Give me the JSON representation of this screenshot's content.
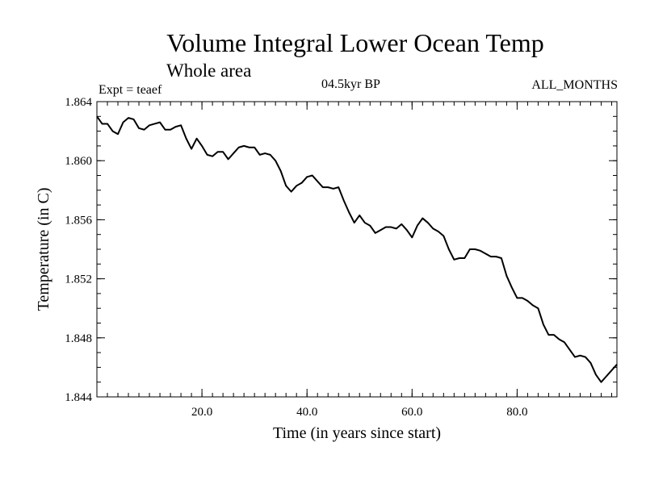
{
  "chart_data": {
    "type": "line",
    "title": "Volume Integral Lower Ocean Temp",
    "subtitle": "Whole area",
    "expt_label": "Expt = teaef",
    "period_label": "04.5kyr BP",
    "months_label": "ALL_MONTHS",
    "xlabel": "Time (in years since start)",
    "ylabel": "Temperature (in C)",
    "xlim": [
      0,
      99
    ],
    "ylim": [
      1.844,
      1.864
    ],
    "x_ticks": [
      {
        "value": 20,
        "label": "20.0"
      },
      {
        "value": 40,
        "label": "40.0"
      },
      {
        "value": 60,
        "label": "60.0"
      },
      {
        "value": 80,
        "label": "80.0"
      }
    ],
    "y_ticks": [
      {
        "value": 1.844,
        "label": "1.844"
      },
      {
        "value": 1.848,
        "label": "1.848"
      },
      {
        "value": 1.852,
        "label": "1.852"
      },
      {
        "value": 1.856,
        "label": "1.856"
      },
      {
        "value": 1.86,
        "label": "1.860"
      },
      {
        "value": 1.864,
        "label": "1.864"
      }
    ],
    "x_minor_step": 2,
    "y_minor_step": 0.001,
    "series": [
      {
        "name": "teaef",
        "color": "#000000",
        "x": [
          0,
          1,
          2,
          3,
          4,
          5,
          6,
          7,
          8,
          9,
          10,
          11,
          12,
          13,
          14,
          15,
          16,
          17,
          18,
          19,
          20,
          21,
          22,
          23,
          24,
          25,
          26,
          27,
          28,
          29,
          30,
          31,
          32,
          33,
          34,
          35,
          36,
          37,
          38,
          39,
          40,
          41,
          42,
          43,
          44,
          45,
          46,
          47,
          48,
          49,
          50,
          51,
          52,
          53,
          54,
          55,
          56,
          57,
          58,
          59,
          60,
          61,
          62,
          63,
          64,
          65,
          66,
          67,
          68,
          69,
          70,
          71,
          72,
          73,
          74,
          75,
          76,
          77,
          78,
          79,
          80,
          81,
          82,
          83,
          84,
          85,
          86,
          87,
          88,
          89,
          90,
          91,
          92,
          93,
          94,
          95,
          96,
          97,
          98,
          99
        ],
        "values": [
          1.863,
          1.8625,
          1.8625,
          1.862,
          1.8618,
          1.8626,
          1.8629,
          1.8628,
          1.8622,
          1.8621,
          1.8624,
          1.8625,
          1.8626,
          1.8621,
          1.8621,
          1.8623,
          1.8624,
          1.8615,
          1.8608,
          1.8615,
          1.861,
          1.8604,
          1.8603,
          1.8606,
          1.8606,
          1.8601,
          1.8605,
          1.8609,
          1.861,
          1.8609,
          1.8609,
          1.8604,
          1.8605,
          1.8604,
          1.86,
          1.8593,
          1.8583,
          1.8579,
          1.8583,
          1.8585,
          1.8589,
          1.859,
          1.8586,
          1.8582,
          1.8582,
          1.8581,
          1.8582,
          1.8573,
          1.8565,
          1.8558,
          1.8563,
          1.8558,
          1.8556,
          1.8551,
          1.8553,
          1.8555,
          1.8555,
          1.8554,
          1.8557,
          1.8553,
          1.8548,
          1.8556,
          1.8561,
          1.8558,
          1.8554,
          1.8552,
          1.8549,
          1.854,
          1.8533,
          1.8534,
          1.8534,
          1.854,
          1.854,
          1.8539,
          1.8537,
          1.8535,
          1.8535,
          1.8534,
          1.8522,
          1.8514,
          1.8507,
          1.8507,
          1.8505,
          1.8502,
          1.85,
          1.8489,
          1.8482,
          1.8482,
          1.8479,
          1.8477,
          1.8472,
          1.8467,
          1.8468,
          1.8467,
          1.8463,
          1.8455,
          1.845,
          1.8454,
          1.8458,
          1.8462
        ]
      }
    ]
  }
}
